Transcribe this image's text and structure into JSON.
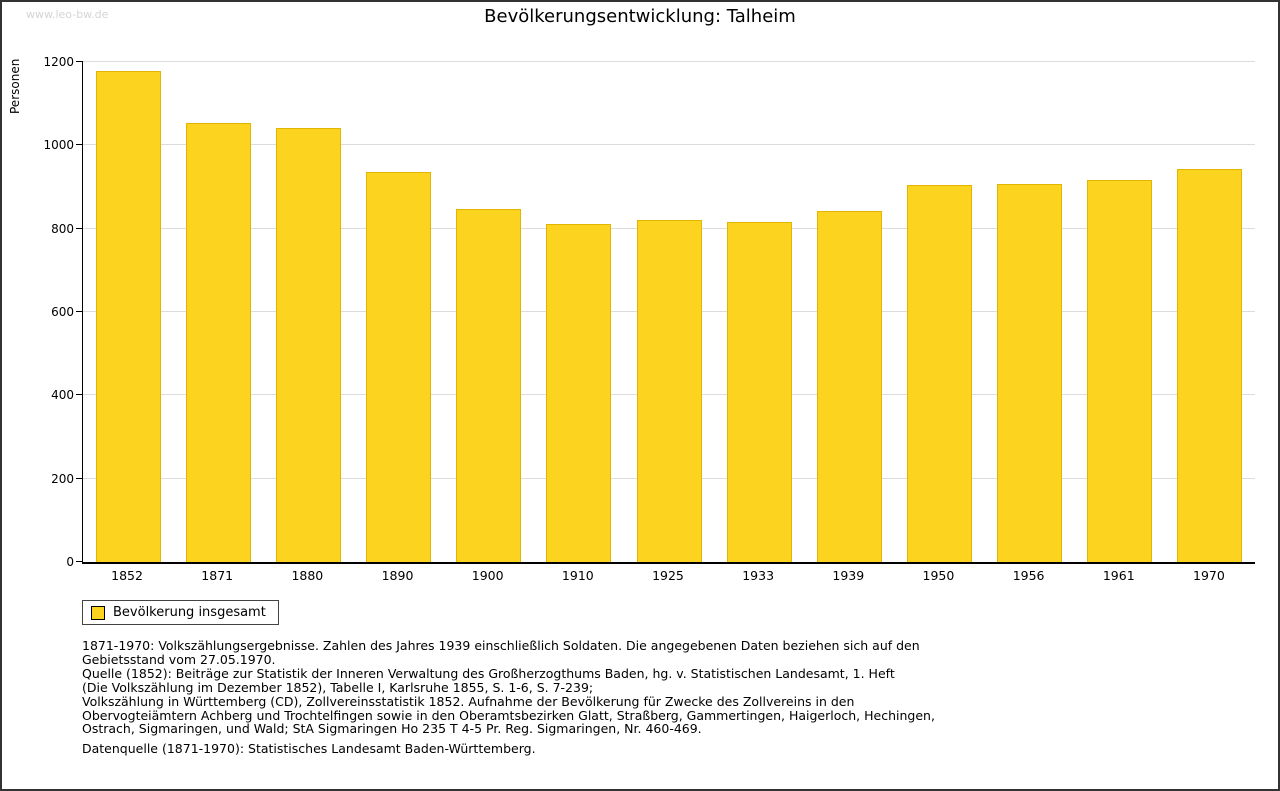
{
  "page": {
    "watermark": "www.leo-bw.de",
    "title": "Bevölkerungsentwicklung: Talheim"
  },
  "legend": {
    "label": "Bevölkerung insgesamt"
  },
  "notes": [
    "1871-1970: Volkszählungsergebnisse. Zahlen des Jahres 1939 einschließlich Soldaten. Die angegebenen Daten beziehen sich auf den",
    "Gebietsstand vom 27.05.1970.",
    "Quelle (1852): Beiträge zur Statistik der Inneren Verwaltung des Großherzogthums Baden, hg. v. Statistischen Landesamt, 1. Heft",
    "(Die Volkszählung im Dezember 1852), Tabelle I, Karlsruhe 1855, S. 1-6, S. 7-239;",
    "Volkszählung in Württemberg (CD), Zollvereinsstatistik 1852. Aufnahme der Bevölkerung für Zwecke des Zollvereins in den",
    "Obervogteiämtern Achberg und Trochtelfingen sowie in den Oberamtsbezirken Glatt, Straßberg, Gammertingen, Haigerloch, Hechingen,",
    "Ostrach, Sigmaringen, und Wald; StA Sigmaringen Ho 235 T 4-5 Pr. Reg. Sigmaringen, Nr. 460-469."
  ],
  "footer_note": "Datenquelle (1871-1970): Statistisches Landesamt Baden-Württemberg.",
  "chart_data": {
    "type": "bar",
    "title": "Bevölkerungsentwicklung: Talheim",
    "xlabel": "",
    "ylabel": "Personen",
    "categories": [
      "1852",
      "1871",
      "1880",
      "1890",
      "1900",
      "1910",
      "1925",
      "1933",
      "1939",
      "1950",
      "1956",
      "1961",
      "1970"
    ],
    "values": [
      1178,
      1054,
      1042,
      936,
      847,
      811,
      821,
      816,
      842,
      905,
      907,
      917,
      943
    ],
    "series_name": "Bevölkerung insgesamt",
    "ylim": [
      0,
      1200
    ],
    "yticks": [
      0,
      200,
      400,
      600,
      800,
      1000,
      1200
    ],
    "bar_color": "#FCD31E",
    "grid": true,
    "legend_position": "bottom-left"
  }
}
